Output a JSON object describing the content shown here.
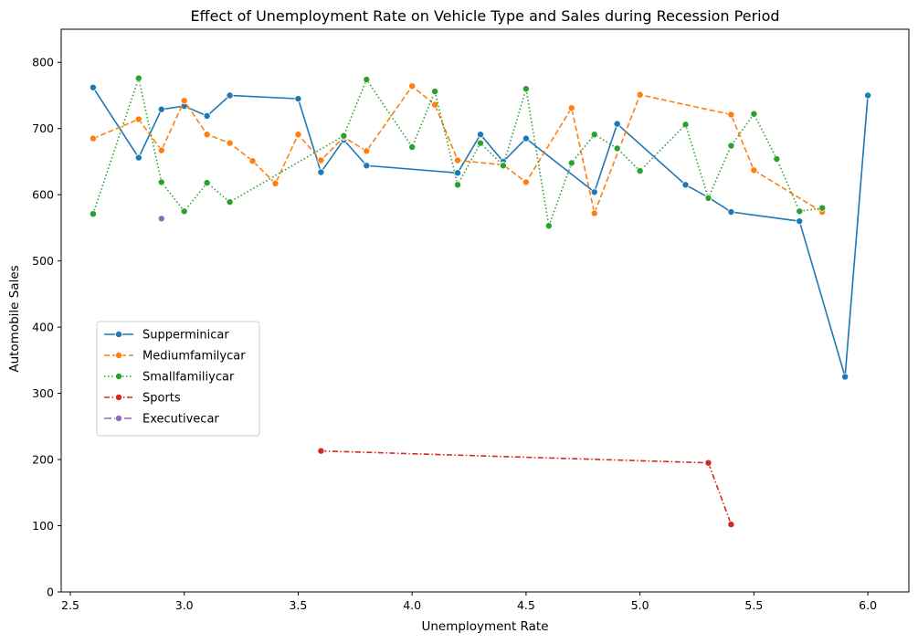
{
  "chart_data": {
    "type": "line",
    "title": "Effect of Unemployment Rate on Vehicle Type and Sales during Recession Period",
    "xlabel": "Unemployment Rate",
    "ylabel": "Automobile Sales",
    "xlim": [
      2.46,
      6.18
    ],
    "ylim": [
      0,
      850
    ],
    "xticks": [
      2.5,
      3.0,
      3.5,
      4.0,
      4.5,
      5.0,
      5.5,
      6.0
    ],
    "xtick_labels": [
      "2.5",
      "3.0",
      "3.5",
      "4.0",
      "4.5",
      "5.0",
      "5.5",
      "6.0"
    ],
    "yticks": [
      0,
      100,
      200,
      300,
      400,
      500,
      600,
      700,
      800
    ],
    "ytick_labels": [
      "0",
      "100",
      "200",
      "300",
      "400",
      "500",
      "600",
      "700",
      "800"
    ],
    "grid": false,
    "legend_position": "center-left",
    "series": [
      {
        "name": "Supperminicar",
        "color": "#1f77b4",
        "dash": "solid",
        "x": [
          2.6,
          2.8,
          2.9,
          3.0,
          3.1,
          3.2,
          3.5,
          3.6,
          3.7,
          3.8,
          4.2,
          4.3,
          4.4,
          4.5,
          4.8,
          4.9,
          5.2,
          5.3,
          5.4,
          5.7,
          5.9,
          6.0
        ],
        "y": [
          762,
          656,
          729,
          734,
          719,
          750,
          745,
          634,
          683,
          644,
          633,
          691,
          650,
          685,
          604,
          707,
          615,
          596,
          574,
          560,
          325,
          750
        ]
      },
      {
        "name": "Mediumfamilycar",
        "color": "#ff7f0e",
        "dash": "dashed",
        "x": [
          2.6,
          2.8,
          2.9,
          3.0,
          3.1,
          3.2,
          3.3,
          3.4,
          3.5,
          3.6,
          3.7,
          3.8,
          4.0,
          4.1,
          4.2,
          4.4,
          4.5,
          4.7,
          4.8,
          5.0,
          5.4,
          5.5,
          5.8
        ],
        "y": [
          685,
          714,
          667,
          742,
          691,
          678,
          651,
          617,
          691,
          652,
          687,
          666,
          764,
          736,
          652,
          645,
          619,
          731,
          572,
          751,
          721,
          637,
          574
        ]
      },
      {
        "name": "Smallfamiliycar",
        "color": "#2ca02c",
        "dash": "dotted",
        "x": [
          2.6,
          2.8,
          2.9,
          3.0,
          3.1,
          3.2,
          3.7,
          3.8,
          4.0,
          4.1,
          4.2,
          4.3,
          4.4,
          4.5,
          4.6,
          4.7,
          4.8,
          4.9,
          5.0,
          5.2,
          5.3,
          5.4,
          5.5,
          5.6,
          5.7,
          5.8
        ],
        "y": [
          571,
          776,
          619,
          575,
          618,
          589,
          689,
          774,
          672,
          756,
          615,
          678,
          644,
          760,
          553,
          648,
          691,
          670,
          636,
          706,
          595,
          674,
          722,
          654,
          575,
          580
        ]
      },
      {
        "name": "Sports",
        "color": "#d62728",
        "dash": "dashdot",
        "x": [
          3.6,
          5.3,
          5.4
        ],
        "y": [
          213,
          195,
          102
        ]
      },
      {
        "name": "Executivecar",
        "color": "#9467bd",
        "dash": "longdash",
        "x": [
          2.9
        ],
        "y": [
          564
        ]
      }
    ]
  }
}
